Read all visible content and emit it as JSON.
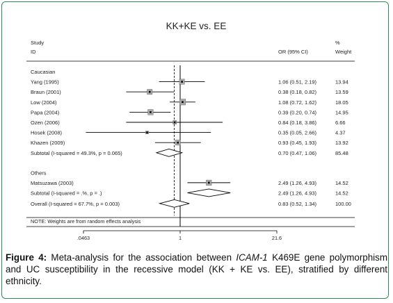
{
  "figure": {
    "caption_label": "Figure 4:",
    "caption_part1": " Meta-analysis for the association between ",
    "caption_gene": "ICAM-1",
    "caption_part2": " K469E gene polymorphism and UC susceptibility in the recessive model (KK + KE vs. EE), stratified by different ethnicity."
  },
  "chart_data": {
    "type": "forest",
    "title": "KK+KE vs. EE",
    "header": {
      "study_line1": "Study",
      "study_line2": "ID",
      "effect": "OR (95% CI)",
      "weight_line1": "%",
      "weight_line2": "Weight"
    },
    "scale": "log",
    "xlim": [
      0.0463,
      21.6
    ],
    "xticks": [
      {
        "value": 0.0463,
        "label": ".0463"
      },
      {
        "value": 1,
        "label": "1"
      },
      {
        "value": 21.6,
        "label": "21.6"
      }
    ],
    "null_value": 1,
    "overall_line": 0.83,
    "groups": [
      {
        "label": "Caucasian",
        "studies": [
          {
            "study": "Yang (1995)",
            "or": 1.06,
            "lo": 0.51,
            "hi": 2.19,
            "ci_text": "1.06 (0.51, 2.19)",
            "weight": 13.94,
            "weight_text": "13.94"
          },
          {
            "study": "Braun (2001)",
            "or": 0.38,
            "lo": 0.18,
            "hi": 0.82,
            "ci_text": "0.38 (0.18, 0.82)",
            "weight": 13.59,
            "weight_text": "13.59"
          },
          {
            "study": "Low (2004)",
            "or": 1.08,
            "lo": 0.72,
            "hi": 1.62,
            "ci_text": "1.08 (0.72, 1.62)",
            "weight": 18.05,
            "weight_text": "18.05"
          },
          {
            "study": "Papa (2004)",
            "or": 0.39,
            "lo": 0.2,
            "hi": 0.74,
            "ci_text": "0.39 (0.20, 0.74)",
            "weight": 14.95,
            "weight_text": "14.95"
          },
          {
            "study": "Ozen (2006)",
            "or": 0.84,
            "lo": 0.18,
            "hi": 3.86,
            "ci_text": "0.84 (0.18, 3.86)",
            "weight": 6.66,
            "weight_text": "6.66"
          },
          {
            "study": "Hosek (2008)",
            "or": 0.35,
            "lo": 0.05,
            "hi": 2.66,
            "ci_text": "0.35 (0.05, 2.66)",
            "weight": 4.37,
            "weight_text": "4.37"
          },
          {
            "study": "Khazen (2009)",
            "or": 0.93,
            "lo": 0.45,
            "hi": 1.93,
            "ci_text": "0.93 (0.45, 1.93)",
            "weight": 13.92,
            "weight_text": "13.92"
          }
        ],
        "subtotal": {
          "label": "Subtotal  (I-squared = 49.3%, p = 0.065)",
          "or": 0.7,
          "lo": 0.47,
          "hi": 1.06,
          "ci_text": "0.70 (0.47, 1.06)",
          "weight_text": "85.48"
        }
      },
      {
        "label": "Others",
        "studies": [
          {
            "study": "Matsuzawa (2003)",
            "or": 2.49,
            "lo": 1.26,
            "hi": 4.93,
            "ci_text": "2.49 (1.26, 4.93)",
            "weight": 14.52,
            "weight_text": "14.52"
          }
        ],
        "subtotal": {
          "label": "Subtotal  (I-squared = .%, p = .)",
          "or": 2.49,
          "lo": 1.26,
          "hi": 4.93,
          "ci_text": "2.49 (1.26, 4.93)",
          "weight_text": "14.52"
        }
      }
    ],
    "overall": {
      "label": "Overall  (I-squared = 67.7%, p = 0.003)",
      "or": 0.83,
      "lo": 0.52,
      "hi": 1.34,
      "ci_text": "0.83 (0.52, 1.34)",
      "weight_text": "100.00"
    },
    "note": "NOTE: Weights are from random effects analysis",
    "colors": {
      "box": "#a9a9a9",
      "line": "#000000",
      "frame": "#2e8b57"
    }
  }
}
